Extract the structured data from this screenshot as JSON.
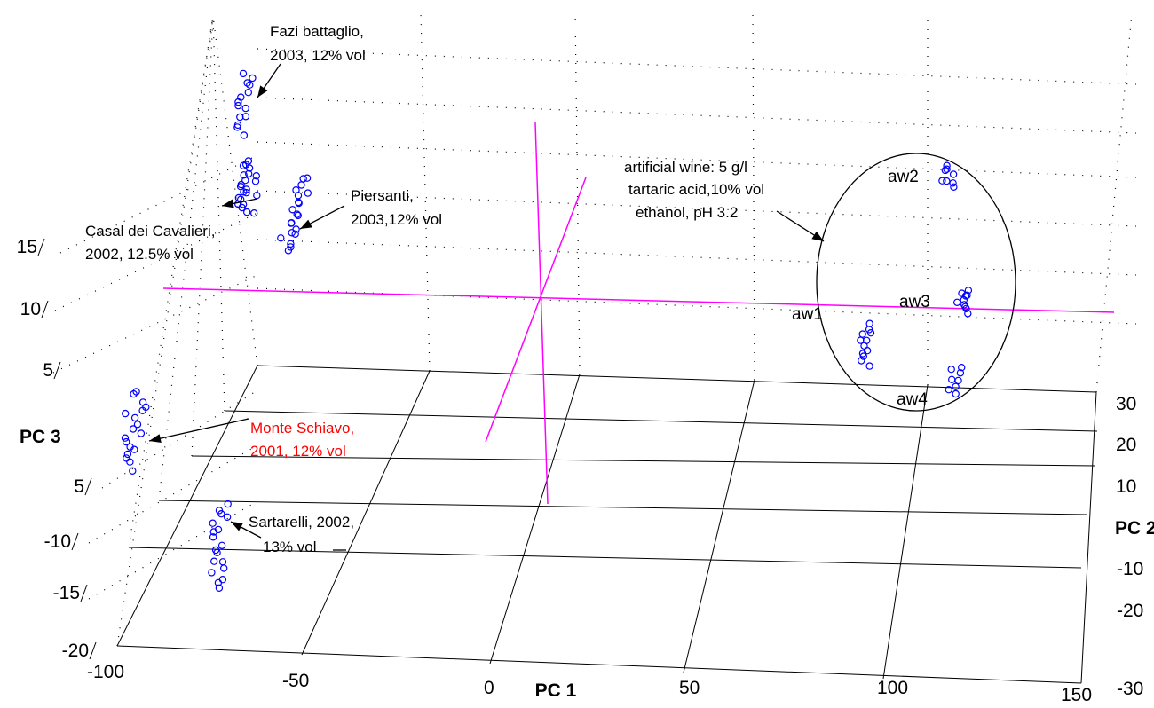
{
  "chart_data": {
    "type": "scatter",
    "projection": "3d",
    "title": "",
    "xlabel": "PC 1",
    "ylabel": "PC 2",
    "zlabel": "PC 3",
    "xlim": [
      -100,
      150
    ],
    "ylim": [
      -30,
      30
    ],
    "zlim": [
      -20,
      15
    ],
    "x_ticks": [
      "-100",
      "-50",
      "0",
      "50",
      "100",
      "150"
    ],
    "y_ticks": [
      "30",
      "20",
      "10",
      "-10",
      "-20",
      "-30"
    ],
    "z_ticks": [
      "15",
      "10",
      "5",
      "5",
      "-10",
      "-15",
      "-20"
    ],
    "marker": "open circle",
    "marker_color": "#0000ff",
    "grid": true,
    "reference_lines_color": "#ff00ff",
    "series": [
      {
        "name": "Fazi battaglio",
        "points": 14
      },
      {
        "name": "Casal dei Cavalieri",
        "points": 22
      },
      {
        "name": "Piersanti",
        "points": 20
      },
      {
        "name": "Monte Schiavo",
        "points": 18
      },
      {
        "name": "Sartarelli",
        "points": 18
      },
      {
        "name": "aw1",
        "points": 12
      },
      {
        "name": "aw2",
        "points": 8
      },
      {
        "name": "aw3",
        "points": 10
      },
      {
        "name": "aw4",
        "points": 8
      }
    ],
    "annotations": [
      {
        "id": "fazi",
        "lines": [
          "Fazi battaglio,",
          "2003, 12% vol"
        ],
        "color": "#000000"
      },
      {
        "id": "piersanti",
        "lines": [
          "Piersanti,",
          "2003,12% vol"
        ],
        "color": "#000000"
      },
      {
        "id": "casal",
        "lines": [
          "Casal dei Cavalieri,",
          "2002, 12.5% vol"
        ],
        "color": "#000000"
      },
      {
        "id": "monte",
        "lines": [
          "Monte Schiavo,",
          "2001, 12% vol"
        ],
        "color": "#ff0000"
      },
      {
        "id": "sartarelli",
        "lines": [
          "Sartarelli, 2002,",
          "13% vol"
        ],
        "color": "#000000"
      },
      {
        "id": "artificial",
        "lines": [
          "artificial wine:  5 g/l",
          "tartaric acid,10% vol",
          "ethanol, pH 3.2"
        ],
        "color": "#000000"
      }
    ],
    "group_labels": [
      "aw1",
      "aw2",
      "aw3",
      "aw4"
    ]
  }
}
